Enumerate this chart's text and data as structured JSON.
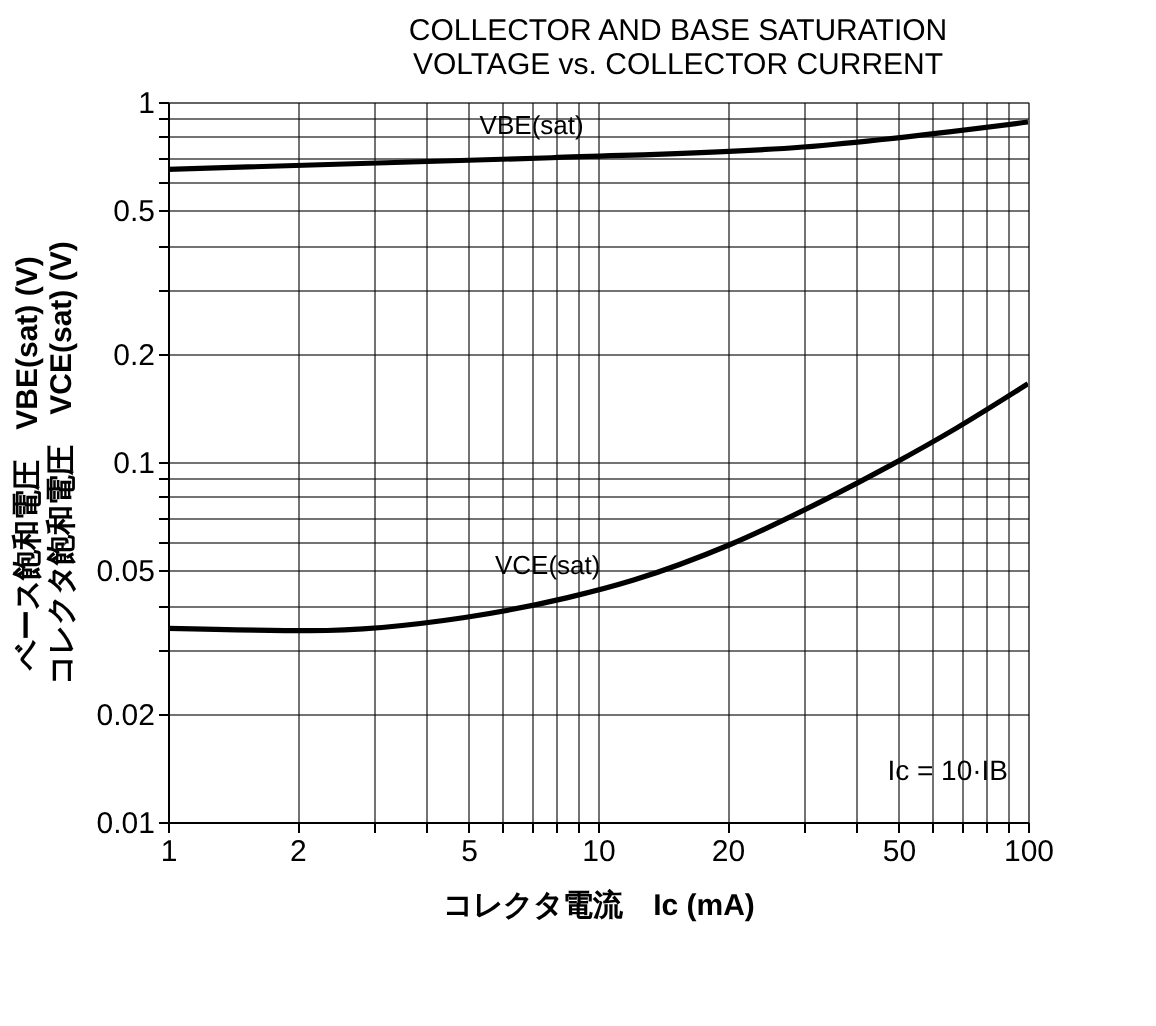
{
  "chart_data": {
    "type": "line",
    "title": [
      "COLLECTOR AND BASE SATURATION",
      "VOLTAGE vs. COLLECTOR CURRENT"
    ],
    "xlabel": "コレクタ電流　Ic (mA)",
    "ylabel": [
      "ベース飽和電圧　VBE(sat) (V)",
      "コレクタ飽和電圧　VCE(sat) (V)"
    ],
    "annotations": [
      "Ic = 10·IB"
    ],
    "log": "xy",
    "grid": true,
    "legend": false,
    "line_style": "solid",
    "marker": "none",
    "xlim": [
      1,
      100
    ],
    "ylim": [
      0.01,
      1
    ],
    "xticks": [
      1,
      2,
      {
        "value": 3,
        "label": null
      },
      {
        "value": 4,
        "label": null
      },
      5,
      {
        "value": 6,
        "label": null
      },
      {
        "value": 7,
        "label": null
      },
      {
        "value": 8,
        "label": null
      },
      {
        "value": 9,
        "label": null
      },
      10,
      20,
      {
        "value": 30,
        "label": null
      },
      {
        "value": 40,
        "label": null
      },
      50,
      {
        "value": 60,
        "label": null
      },
      {
        "value": 70,
        "label": null
      },
      {
        "value": 80,
        "label": null
      },
      {
        "value": 90,
        "label": null
      },
      100
    ],
    "yticks": [
      0.01,
      0.02,
      {
        "value": 0.03,
        "label": null
      },
      {
        "value": 0.04,
        "label": null
      },
      0.05,
      {
        "value": 0.06,
        "label": null
      },
      {
        "value": 0.07,
        "label": null
      },
      {
        "value": 0.08,
        "label": null
      },
      {
        "value": 0.09,
        "label": null
      },
      0.1,
      0.2,
      {
        "value": 0.3,
        "label": null
      },
      {
        "value": 0.4,
        "label": null
      },
      0.5,
      {
        "value": 0.6,
        "label": null
      },
      {
        "value": 0.7,
        "label": null
      },
      {
        "value": 0.8,
        "label": null
      },
      {
        "value": 0.9,
        "label": null
      },
      1
    ],
    "series": [
      {
        "name": "VBE(sat)",
        "color": "#000000",
        "x": [
          1,
          7.8,
          30,
          100
        ],
        "values": [
          0.65,
          0.7,
          0.75,
          0.88
        ]
      },
      {
        "name": "VCE(sat)",
        "color": "#000000",
        "x": [
          1,
          2.14,
          4.9,
          8.5,
          12.1,
          20.3,
          34,
          48,
          68,
          100
        ],
        "values": [
          0.0345,
          0.034,
          0.037,
          0.042,
          0.047,
          0.059,
          0.079,
          0.098,
          0.124,
          0.165
        ]
      }
    ]
  }
}
